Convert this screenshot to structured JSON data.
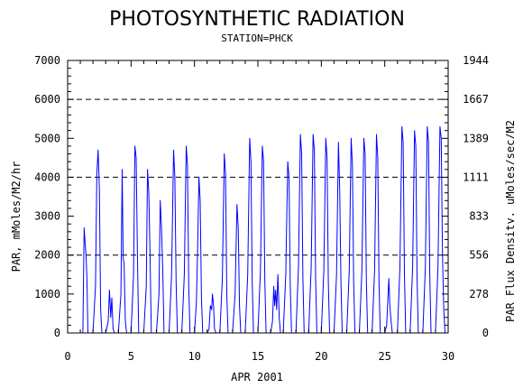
{
  "chart_data": {
    "type": "line",
    "title": "PHOTOSYNTHETIC RADIATION",
    "subtitle": "STATION=PHCK",
    "xlabel": "APR 2001",
    "ylabel": "PAR, mMoles/M2/hr",
    "ylabel_right": "PAR Flux Density, uMoles/sec/M2",
    "xlim": [
      0,
      30
    ],
    "ylim": [
      0,
      7000
    ],
    "x_ticks": [
      0,
      5,
      10,
      15,
      20,
      25,
      30
    ],
    "y_ticks": [
      0,
      1000,
      2000,
      3000,
      4000,
      5000,
      6000,
      7000
    ],
    "y_ticks_right": [
      "0",
      "278",
      "556",
      "833",
      "1111",
      "1389",
      "1667",
      "1944"
    ],
    "dashed_grid_y": [
      2000,
      4000,
      6000
    ],
    "line_color": "#0000ff",
    "series": [
      {
        "values": [
          [
            1.0,
            0
          ],
          [
            1.2,
            0
          ],
          [
            1.3,
            2700
          ],
          [
            1.38,
            2300
          ],
          [
            1.45,
            2000
          ],
          [
            1.52,
            1400
          ],
          [
            1.6,
            0
          ],
          [
            2.0,
            0
          ],
          [
            2.2,
            1200
          ],
          [
            2.3,
            4100
          ],
          [
            2.4,
            4700
          ],
          [
            2.5,
            3700
          ],
          [
            2.6,
            600
          ],
          [
            2.7,
            0
          ],
          [
            3.0,
            0
          ],
          [
            3.2,
            300
          ],
          [
            3.3,
            1100
          ],
          [
            3.4,
            400
          ],
          [
            3.48,
            900
          ],
          [
            3.58,
            100
          ],
          [
            3.7,
            0
          ],
          [
            4.0,
            0
          ],
          [
            4.2,
            1000
          ],
          [
            4.3,
            4200
          ],
          [
            4.38,
            1900
          ],
          [
            4.45,
            1800
          ],
          [
            4.55,
            300
          ],
          [
            4.65,
            0
          ],
          [
            5.0,
            0
          ],
          [
            5.2,
            1500
          ],
          [
            5.3,
            4800
          ],
          [
            5.4,
            4500
          ],
          [
            5.5,
            2000
          ],
          [
            5.6,
            0
          ],
          [
            6.0,
            0
          ],
          [
            6.2,
            1200
          ],
          [
            6.3,
            4200
          ],
          [
            6.4,
            3600
          ],
          [
            6.5,
            2000
          ],
          [
            6.6,
            0
          ],
          [
            7.0,
            0
          ],
          [
            7.2,
            1000
          ],
          [
            7.3,
            3400
          ],
          [
            7.4,
            2700
          ],
          [
            7.5,
            1600
          ],
          [
            7.6,
            0
          ],
          [
            8.0,
            0
          ],
          [
            8.2,
            1500
          ],
          [
            8.35,
            4700
          ],
          [
            8.45,
            4000
          ],
          [
            8.55,
            1300
          ],
          [
            8.65,
            0
          ],
          [
            9.0,
            0
          ],
          [
            9.2,
            1500
          ],
          [
            9.35,
            4800
          ],
          [
            9.45,
            4300
          ],
          [
            9.55,
            1200
          ],
          [
            9.65,
            0
          ],
          [
            10.0,
            0
          ],
          [
            10.15,
            800
          ],
          [
            10.25,
            2200
          ],
          [
            10.35,
            4000
          ],
          [
            10.45,
            3400
          ],
          [
            10.55,
            900
          ],
          [
            10.65,
            0
          ],
          [
            11.0,
            0
          ],
          [
            11.15,
            100
          ],
          [
            11.25,
            700
          ],
          [
            11.35,
            600
          ],
          [
            11.42,
            1000
          ],
          [
            11.5,
            700
          ],
          [
            11.58,
            100
          ],
          [
            11.7,
            0
          ],
          [
            12.0,
            0
          ],
          [
            12.2,
            1400
          ],
          [
            12.35,
            4600
          ],
          [
            12.45,
            4100
          ],
          [
            12.55,
            1000
          ],
          [
            12.65,
            0
          ],
          [
            13.0,
            0
          ],
          [
            13.2,
            1000
          ],
          [
            13.35,
            3300
          ],
          [
            13.45,
            2700
          ],
          [
            13.55,
            700
          ],
          [
            13.65,
            0
          ],
          [
            14.0,
            0
          ],
          [
            14.2,
            1500
          ],
          [
            14.35,
            5000
          ],
          [
            14.45,
            4400
          ],
          [
            14.55,
            1300
          ],
          [
            14.65,
            0
          ],
          [
            15.0,
            0
          ],
          [
            15.2,
            1600
          ],
          [
            15.35,
            4800
          ],
          [
            15.45,
            4400
          ],
          [
            15.55,
            1300
          ],
          [
            15.65,
            0
          ],
          [
            16.0,
            0
          ],
          [
            16.15,
            300
          ],
          [
            16.25,
            1200
          ],
          [
            16.32,
            700
          ],
          [
            16.4,
            1100
          ],
          [
            16.48,
            600
          ],
          [
            16.58,
            1500
          ],
          [
            16.68,
            400
          ],
          [
            16.78,
            0
          ],
          [
            17.0,
            0
          ],
          [
            17.2,
            1500
          ],
          [
            17.35,
            4400
          ],
          [
            17.45,
            4000
          ],
          [
            17.55,
            1200
          ],
          [
            17.65,
            0
          ],
          [
            18.0,
            0
          ],
          [
            18.2,
            1700
          ],
          [
            18.35,
            5100
          ],
          [
            18.45,
            4600
          ],
          [
            18.55,
            1400
          ],
          [
            18.65,
            0
          ],
          [
            19.0,
            0
          ],
          [
            19.2,
            1700
          ],
          [
            19.35,
            5100
          ],
          [
            19.45,
            4700
          ],
          [
            19.55,
            1400
          ],
          [
            19.65,
            0
          ],
          [
            20.0,
            0
          ],
          [
            20.2,
            1600
          ],
          [
            20.35,
            5000
          ],
          [
            20.45,
            4500
          ],
          [
            20.55,
            1300
          ],
          [
            20.65,
            0
          ],
          [
            21.0,
            0
          ],
          [
            21.2,
            1500
          ],
          [
            21.35,
            4900
          ],
          [
            21.45,
            3700
          ],
          [
            21.55,
            1300
          ],
          [
            21.65,
            0
          ],
          [
            22.0,
            0
          ],
          [
            22.2,
            1600
          ],
          [
            22.35,
            5000
          ],
          [
            22.45,
            4300
          ],
          [
            22.55,
            1300
          ],
          [
            22.65,
            0
          ],
          [
            23.0,
            0
          ],
          [
            23.2,
            1600
          ],
          [
            23.35,
            5000
          ],
          [
            23.45,
            4600
          ],
          [
            23.55,
            1300
          ],
          [
            23.65,
            0
          ],
          [
            24.0,
            0
          ],
          [
            24.2,
            1600
          ],
          [
            24.35,
            5100
          ],
          [
            24.45,
            4500
          ],
          [
            24.55,
            1300
          ],
          [
            24.65,
            0
          ],
          [
            25.0,
            0
          ],
          [
            25.15,
            200
          ],
          [
            25.25,
            900
          ],
          [
            25.32,
            1400
          ],
          [
            25.4,
            700
          ],
          [
            25.5,
            300
          ],
          [
            25.6,
            0
          ],
          [
            26.0,
            0
          ],
          [
            26.2,
            1700
          ],
          [
            26.35,
            5300
          ],
          [
            26.45,
            4900
          ],
          [
            26.55,
            1500
          ],
          [
            26.65,
            0
          ],
          [
            27.0,
            0
          ],
          [
            27.2,
            1700
          ],
          [
            27.35,
            5200
          ],
          [
            27.45,
            4800
          ],
          [
            27.55,
            1400
          ],
          [
            27.65,
            0
          ],
          [
            28.0,
            0
          ],
          [
            28.2,
            1700
          ],
          [
            28.35,
            5300
          ],
          [
            28.45,
            4900
          ],
          [
            28.55,
            1500
          ],
          [
            28.65,
            0
          ],
          [
            29.0,
            0
          ],
          [
            29.2,
            1700
          ],
          [
            29.35,
            5300
          ],
          [
            29.45,
            5000
          ],
          [
            29.55,
            2000
          ],
          [
            29.65,
            600
          ],
          [
            29.75,
            0
          ]
        ]
      }
    ]
  }
}
